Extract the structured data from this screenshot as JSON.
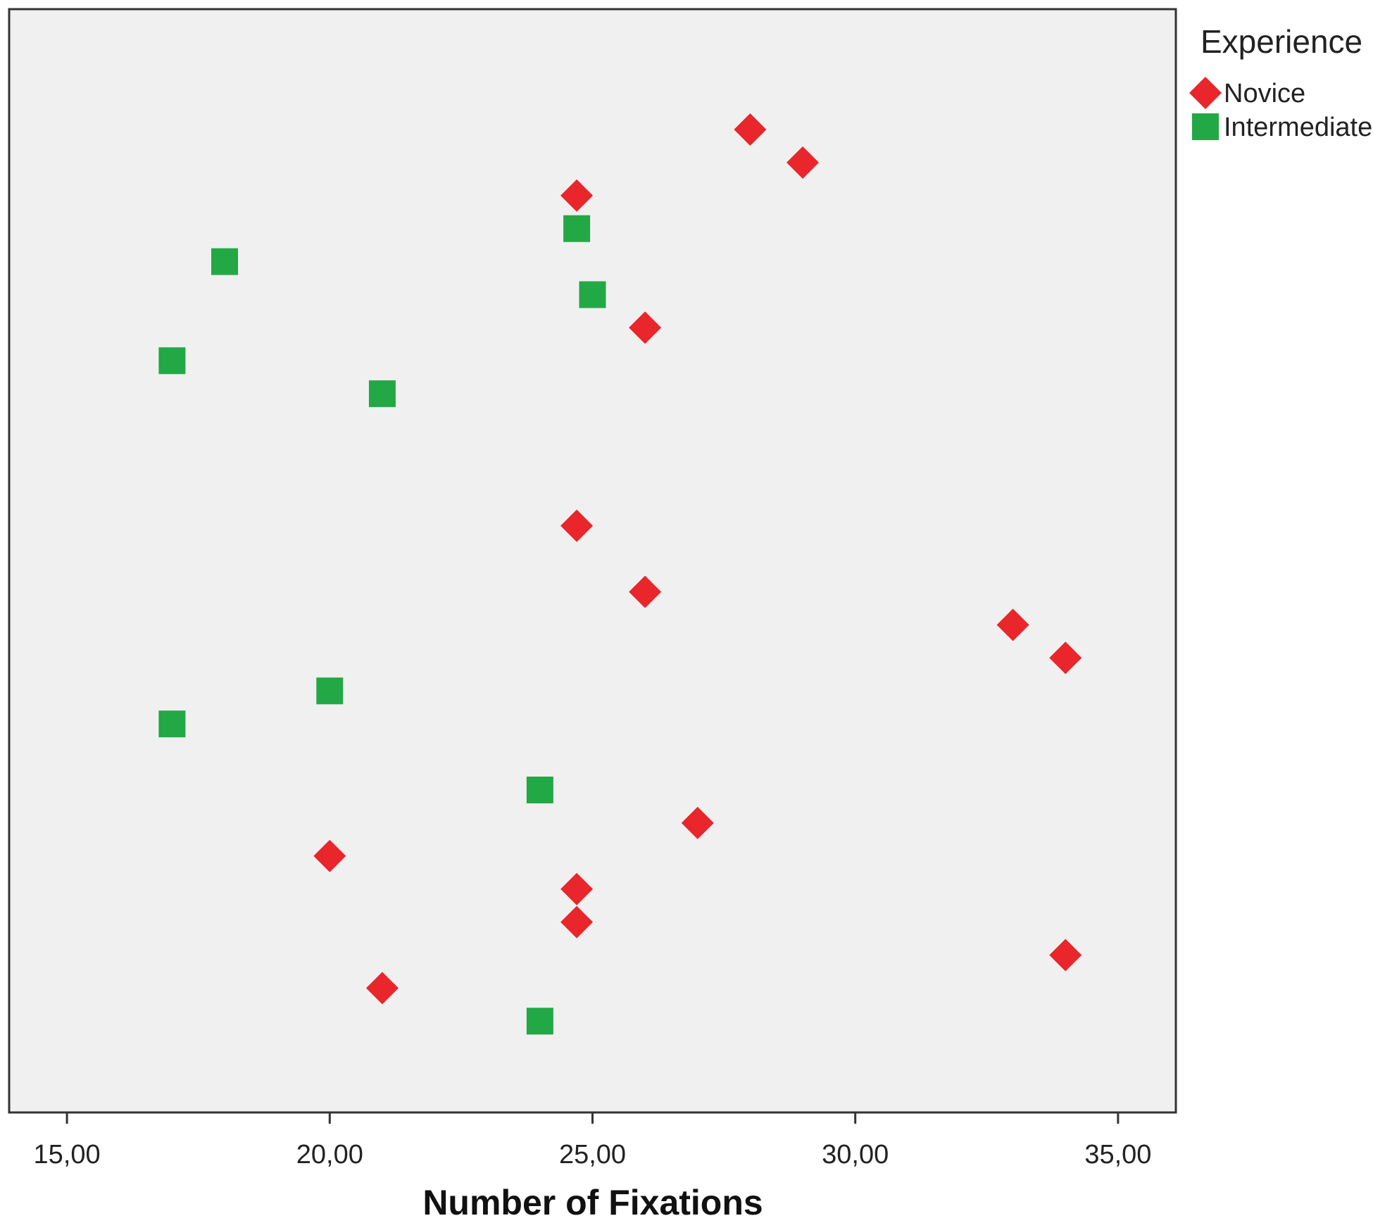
{
  "chart_data": {
    "type": "scatter",
    "title": "",
    "xlabel": "Number of Fixations",
    "ylabel": "",
    "xlim": [
      13.9,
      36.1
    ],
    "xticks": [
      15,
      20,
      25,
      30,
      35
    ],
    "xtick_labels": [
      "15,00",
      "20,00",
      "25,00",
      "30,00",
      "35,00"
    ],
    "grid": false,
    "legend": {
      "title": "Experience",
      "placement": "right",
      "entries": [
        {
          "label": "Novice",
          "color": "#e8262b",
          "marker": "diamond"
        },
        {
          "label": "Intermediate",
          "color": "#22a845",
          "marker": "square"
        }
      ]
    },
    "rows": 28,
    "series": [
      {
        "name": "Novice",
        "color": "#e8262b",
        "marker": "diamond",
        "points": [
          {
            "x": 28.0,
            "row": 1
          },
          {
            "x": 29.0,
            "row": 2
          },
          {
            "x": 24.7,
            "row": 3
          },
          {
            "x": 26.0,
            "row": 7
          },
          {
            "x": 24.7,
            "row": 13
          },
          {
            "x": 26.0,
            "row": 15
          },
          {
            "x": 33.0,
            "row": 16
          },
          {
            "x": 34.0,
            "row": 17
          },
          {
            "x": 27.0,
            "row": 22
          },
          {
            "x": 20.0,
            "row": 23
          },
          {
            "x": 24.7,
            "row": 24
          },
          {
            "x": 24.7,
            "row": 25
          },
          {
            "x": 34.0,
            "row": 26
          },
          {
            "x": 21.0,
            "row": 27
          }
        ]
      },
      {
        "name": "Intermediate",
        "color": "#22a845",
        "marker": "square",
        "points": [
          {
            "x": 24.7,
            "row": 4
          },
          {
            "x": 18.0,
            "row": 5
          },
          {
            "x": 25.0,
            "row": 6
          },
          {
            "x": 17.0,
            "row": 8
          },
          {
            "x": 21.0,
            "row": 9
          },
          {
            "x": 20.0,
            "row": 18
          },
          {
            "x": 17.0,
            "row": 19
          },
          {
            "x": 24.0,
            "row": 21
          },
          {
            "x": 24.0,
            "row": 28
          }
        ]
      }
    ]
  },
  "colors": {
    "plot_background": "#f0f0f0",
    "frame": "#333333"
  }
}
